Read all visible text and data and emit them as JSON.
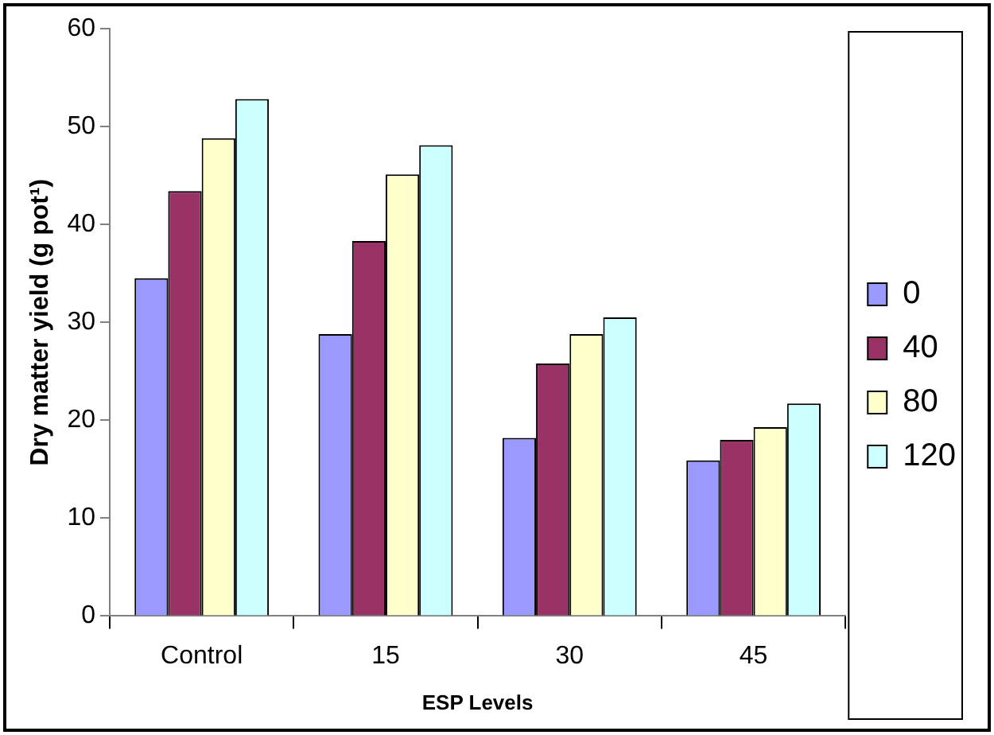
{
  "chart_data": {
    "type": "bar",
    "xlabel": "ESP Levels",
    "ylabel": "Dry matter yield (g pot¹)",
    "categories": [
      "Control",
      "15",
      "30",
      "45"
    ],
    "series": [
      {
        "name": "0",
        "color": "#9999ff",
        "values": [
          34.5,
          28.8,
          18.2,
          15.9
        ]
      },
      {
        "name": "40",
        "color": "#993366",
        "values": [
          43.4,
          38.3,
          25.8,
          18.0
        ]
      },
      {
        "name": "80",
        "color": "#ffffcc",
        "values": [
          48.8,
          45.1,
          28.8,
          19.3
        ]
      },
      {
        "name": "120",
        "color": "#ccffff",
        "values": [
          52.8,
          48.1,
          30.5,
          21.7
        ]
      }
    ],
    "ylim": [
      0,
      60
    ],
    "yticks": [
      0,
      10,
      20,
      30,
      40,
      50,
      60
    ],
    "grid": false,
    "legend": "right"
  }
}
